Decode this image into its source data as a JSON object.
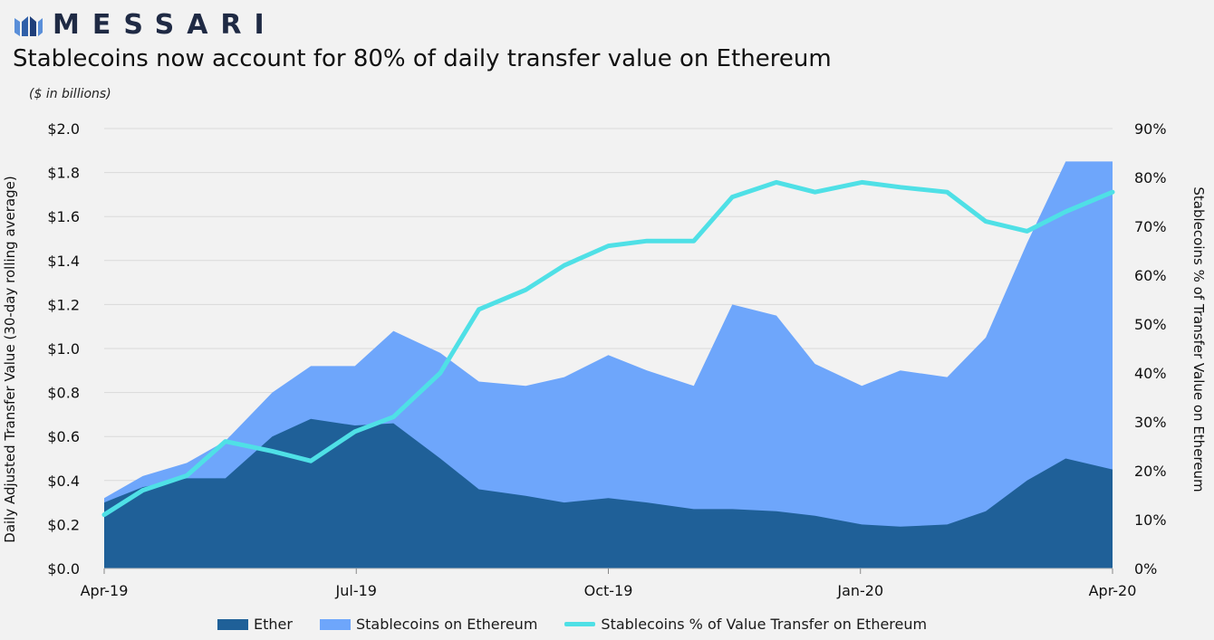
{
  "brand": {
    "name": "MESSARI"
  },
  "chart_data": {
    "type": "area",
    "title": "Stablecoins now account for 80% of daily transfer value on Ethereum",
    "subtitle": "($ in billions)",
    "ylabel": "Daily Adjusted Transfer Value (30-day rolling average)",
    "y2label": "Stablecoins % of Transfer Value on Ethereum",
    "ylim": [
      0,
      2.0
    ],
    "y2lim": [
      0,
      90
    ],
    "yticks": [
      "$0.0",
      "$0.2",
      "$0.4",
      "$0.6",
      "$0.8",
      "$1.0",
      "$1.2",
      "$1.4",
      "$1.6",
      "$1.8",
      "$2.0"
    ],
    "y2ticks": [
      "0%",
      "10%",
      "20%",
      "30%",
      "40%",
      "50%",
      "60%",
      "70%",
      "80%",
      "90%"
    ],
    "xticks": [
      "Apr-19",
      "Jul-19",
      "Oct-19",
      "Jan-20",
      "Apr-20"
    ],
    "grid": true,
    "legend_position": "bottom",
    "colors": {
      "ether": "#1f6098",
      "stable": "#6ea6fb",
      "pct": "#4fe0e6"
    },
    "x": [
      "2019-04-01",
      "2019-04-15",
      "2019-05-01",
      "2019-05-15",
      "2019-06-01",
      "2019-06-15",
      "2019-07-01",
      "2019-07-15",
      "2019-08-01",
      "2019-08-15",
      "2019-09-01",
      "2019-09-15",
      "2019-10-01",
      "2019-10-15",
      "2019-11-01",
      "2019-11-15",
      "2019-12-01",
      "2019-12-15",
      "2020-01-01",
      "2020-01-15",
      "2020-02-01",
      "2020-02-15",
      "2020-03-01",
      "2020-03-15",
      "2020-04-01"
    ],
    "series": [
      {
        "name": "Ether",
        "kind": "area",
        "values": [
          0.3,
          0.37,
          0.41,
          0.41,
          0.6,
          0.68,
          0.65,
          0.66,
          0.5,
          0.36,
          0.33,
          0.3,
          0.32,
          0.3,
          0.27,
          0.27,
          0.26,
          0.24,
          0.2,
          0.19,
          0.2,
          0.26,
          0.4,
          0.5,
          0.45
        ]
      },
      {
        "name": "Stablecoins on Ethereum",
        "kind": "area_total",
        "values": [
          0.32,
          0.42,
          0.48,
          0.58,
          0.8,
          0.92,
          0.92,
          1.08,
          0.98,
          0.85,
          0.83,
          0.87,
          0.97,
          0.9,
          0.83,
          1.2,
          1.15,
          0.93,
          0.83,
          0.9,
          0.87,
          1.05,
          1.48,
          1.85,
          1.85
        ]
      },
      {
        "name": "Stablecoins % of Value Transfer on Ethereum",
        "kind": "line",
        "axis": "right",
        "values": [
          11,
          16,
          19,
          26,
          24,
          22,
          28,
          31,
          40,
          53,
          57,
          62,
          66,
          67,
          67,
          76,
          79,
          77,
          79,
          78,
          77,
          71,
          69,
          73,
          77
        ]
      }
    ]
  },
  "legend": {
    "ether": "Ether",
    "stable": "Stablecoins on Ethereum",
    "pct": "Stablecoins % of Value Transfer on Ethereum"
  }
}
